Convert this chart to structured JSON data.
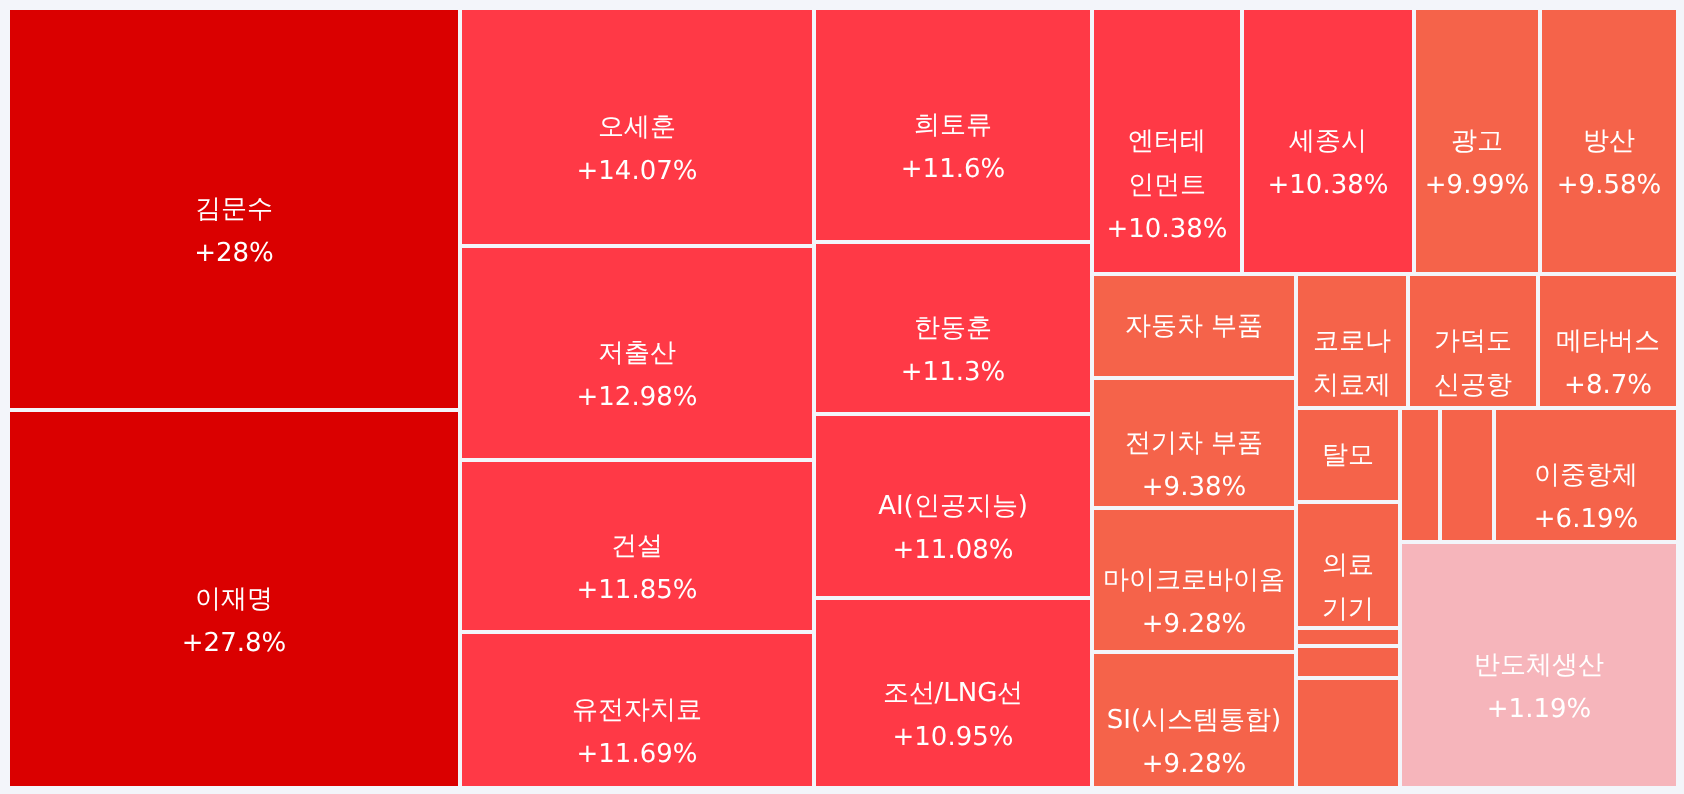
{
  "chart_data": {
    "type": "other",
    "categories": [
      "김문수",
      "이재명",
      "오세훈",
      "저출산",
      "건설",
      "유전자치료",
      "희토류",
      "한동훈",
      "AI(인공지능)",
      "조선/LNG선",
      "엔터테인먼트",
      "세종시",
      "광고",
      "방산",
      "자동차 부품",
      "전기차 부품",
      "마이크로바이옴",
      "SI(시스템통합)",
      "코로나 치료제",
      "가덕도 신공항",
      "메타버스",
      "탈모",
      "의료기기",
      null,
      null,
      "이중항체",
      null,
      null,
      null,
      "반도체생산"
    ],
    "values": [
      28,
      27.8,
      14.07,
      12.98,
      11.85,
      11.69,
      11.6,
      11.3,
      11.08,
      10.95,
      10.38,
      10.38,
      9.99,
      9.58,
      null,
      9.38,
      9.28,
      9.28,
      null,
      null,
      8.7,
      null,
      null,
      null,
      null,
      6.19,
      null,
      null,
      null,
      1.19
    ],
    "value_labels": [
      "+28%",
      "+27.8%",
      "+14.07%",
      "+12.98%",
      "+11.85%",
      "+11.69%",
      "+11.6%",
      "+11.3%",
      "+11.08%",
      "+10.95%",
      "+10.38%",
      "+10.38%",
      "+9.99%",
      "+9.58%",
      null,
      "+9.38%",
      "+9.28%",
      "+9.28%",
      null,
      null,
      "+8.7%",
      null,
      null,
      null,
      null,
      "+6.19%",
      null,
      null,
      null,
      "+1.19%"
    ],
    "colors": [
      "#da0000",
      "#da0000",
      "#ff3946",
      "#ff3946",
      "#ff3946",
      "#ff3946",
      "#ff3946",
      "#ff3946",
      "#ff3946",
      "#ff3946",
      "#ff3946",
      "#ff3946",
      "#f5634a",
      "#f5634a",
      "#f5634a",
      "#f5634a",
      "#f5634a",
      "#f5634a",
      "#f5634a",
      "#f5634a",
      "#f5634a",
      "#f5634a",
      "#f5634a",
      "#f5634a",
      "#f5634a",
      "#f5634a",
      "#f5634a",
      "#f5634a",
      "#f5634a",
      "#f6b5bb"
    ]
  }
}
